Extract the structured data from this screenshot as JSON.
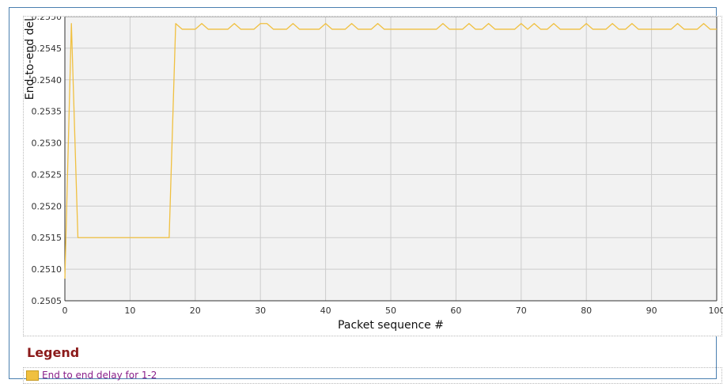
{
  "chart_data": {
    "type": "line",
    "title": "",
    "xlabel": "Packet sequence #",
    "ylabel": "End-to-end del",
    "xlim": [
      0,
      100
    ],
    "ylim": [
      0.2505,
      0.255
    ],
    "x_ticks": [
      0,
      10,
      20,
      30,
      40,
      50,
      60,
      70,
      80,
      90,
      100
    ],
    "y_ticks": [
      "0.2505",
      "0.2510",
      "0.2515",
      "0.2520",
      "0.2525",
      "0.2530",
      "0.2535",
      "0.2540",
      "0.2545",
      "0.2550"
    ],
    "grid": true,
    "series": [
      {
        "name": "End to end delay for 1-2",
        "color": "#f0c040",
        "x": [
          0,
          1,
          2,
          3,
          4,
          5,
          6,
          7,
          8,
          9,
          10,
          11,
          12,
          13,
          14,
          15,
          16,
          17,
          18,
          19,
          20,
          21,
          22,
          23,
          24,
          25,
          26,
          27,
          28,
          29,
          30,
          31,
          32,
          33,
          34,
          35,
          36,
          37,
          38,
          39,
          40,
          41,
          42,
          43,
          44,
          45,
          46,
          47,
          48,
          49,
          50,
          51,
          52,
          53,
          54,
          55,
          56,
          57,
          58,
          59,
          60,
          61,
          62,
          63,
          64,
          65,
          66,
          67,
          68,
          69,
          70,
          71,
          72,
          73,
          74,
          75,
          76,
          77,
          78,
          79,
          80,
          81,
          82,
          83,
          84,
          85,
          86,
          87,
          88,
          89,
          90,
          91,
          92,
          93,
          94,
          95,
          96,
          97,
          98,
          99,
          100
        ],
        "y": [
          0.25085,
          0.25489,
          0.2515,
          0.2515,
          0.2515,
          0.2515,
          0.2515,
          0.2515,
          0.2515,
          0.2515,
          0.2515,
          0.2515,
          0.2515,
          0.2515,
          0.2515,
          0.2515,
          0.2515,
          0.25489,
          0.2548,
          0.2548,
          0.2548,
          0.25489,
          0.2548,
          0.2548,
          0.2548,
          0.2548,
          0.25489,
          0.2548,
          0.2548,
          0.2548,
          0.25489,
          0.25489,
          0.2548,
          0.2548,
          0.2548,
          0.25489,
          0.2548,
          0.2548,
          0.2548,
          0.2548,
          0.25489,
          0.2548,
          0.2548,
          0.2548,
          0.25489,
          0.2548,
          0.2548,
          0.2548,
          0.25489,
          0.2548,
          0.2548,
          0.2548,
          0.2548,
          0.2548,
          0.2548,
          0.2548,
          0.2548,
          0.2548,
          0.25489,
          0.2548,
          0.2548,
          0.2548,
          0.25489,
          0.2548,
          0.2548,
          0.25489,
          0.2548,
          0.2548,
          0.2548,
          0.2548,
          0.25489,
          0.2548,
          0.25489,
          0.2548,
          0.2548,
          0.25489,
          0.2548,
          0.2548,
          0.2548,
          0.2548,
          0.25489,
          0.2548,
          0.2548,
          0.2548,
          0.25489,
          0.2548,
          0.2548,
          0.25489,
          0.2548,
          0.2548,
          0.2548,
          0.2548,
          0.2548,
          0.2548,
          0.25489,
          0.2548,
          0.2548,
          0.2548,
          0.25489,
          0.2548,
          0.2548
        ]
      }
    ],
    "legend_position": "bottom"
  },
  "colors": {
    "frame_border": "#4a7fb0",
    "plot_bg": "#f2f2f2",
    "grid": "#cccccc",
    "legend_title": "#8b1a1a",
    "legend_label": "#8a1f8a"
  },
  "legend": {
    "title": "Legend",
    "items": [
      {
        "label": "End to end delay for 1-2",
        "color": "#f0c040"
      }
    ]
  }
}
